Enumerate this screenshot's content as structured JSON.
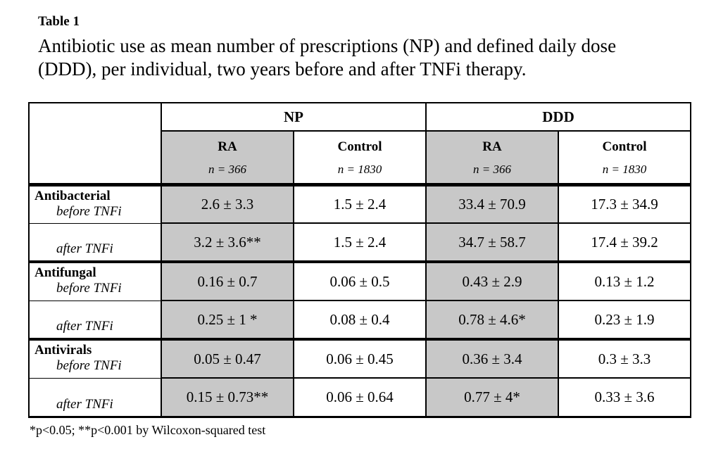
{
  "title": {
    "label": "Table 1",
    "caption_line1": "Antibiotic use as mean number of prescriptions (NP) and defined daily dose",
    "caption_line2": "(DDD), per individual, two years before and after TNFi therapy."
  },
  "table": {
    "groups_header": [
      "NP",
      "DDD"
    ],
    "columns": [
      {
        "label": "RA",
        "n": "n = 366",
        "shaded": true
      },
      {
        "label": "Control",
        "n": "n = 1830",
        "shaded": false
      },
      {
        "label": "RA",
        "n": "n = 366",
        "shaded": true
      },
      {
        "label": "Control",
        "n": "n = 1830",
        "shaded": false
      }
    ],
    "groups": [
      {
        "name": "Antibacterial",
        "before_label": "before TNFi",
        "after_label": "after TNFi",
        "before": [
          "2.6 ± 3.3",
          "1.5 ± 2.4",
          "33.4 ± 70.9",
          "17.3 ± 34.9"
        ],
        "after": [
          "3.2 ± 3.6**",
          "1.5 ± 2.4",
          "34.7 ± 58.7",
          "17.4 ± 39.2"
        ]
      },
      {
        "name": "Antifungal",
        "before_label": "before TNFi",
        "after_label": "after TNFi",
        "before": [
          "0.16 ± 0.7",
          "0.06 ± 0.5",
          "0.43 ± 2.9",
          "0.13 ± 1.2"
        ],
        "after": [
          "0.25 ± 1 *",
          "0.08 ± 0.4",
          "0.78 ± 4.6*",
          "0.23 ± 1.9"
        ]
      },
      {
        "name": "Antivirals",
        "before_label": "before TNFi",
        "after_label": "after TNFi",
        "before": [
          "0.05 ± 0.47",
          "0.06 ± 0.45",
          "0.36 ± 3.4",
          "0.3 ± 3.3"
        ],
        "after": [
          "0.15 ± 0.73**",
          "0.06 ± 0.64",
          "0.77 ± 4*",
          "0.33 ± 3.6"
        ]
      }
    ]
  },
  "footnote": "*p<0.05; **p<0.001 by Wilcoxon-squared test",
  "colors": {
    "row_shading": "#c8c8c8",
    "border": "#000000",
    "background": "#ffffff"
  }
}
